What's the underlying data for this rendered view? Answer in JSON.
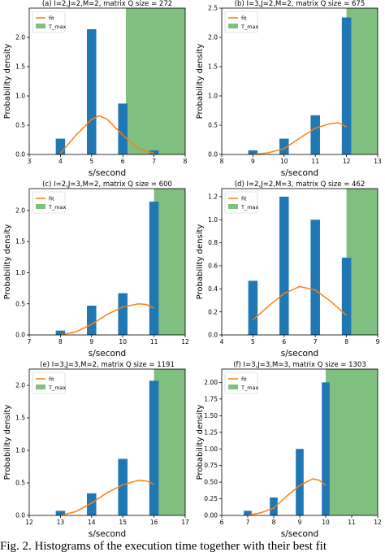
{
  "colors": {
    "bar": "#1f77b4",
    "fit": "#ff7f0e",
    "tmax": "#7fbf7f"
  },
  "chart_data": [
    {
      "type": "bar",
      "panel": "a",
      "title": "(a) I=2,J=2,M=2, matrix Q size = 272",
      "xlabel": "s/second",
      "ylabel": "Probability density",
      "xlim": [
        3,
        8
      ],
      "ylim": [
        0,
        2.5
      ],
      "xticks": [
        3,
        4,
        5,
        6,
        7,
        8
      ],
      "yticks": [
        0.0,
        0.5,
        1.0,
        1.5,
        2.0
      ],
      "bars": [
        {
          "x": 4,
          "value": 0.27
        },
        {
          "x": 5,
          "value": 2.14
        },
        {
          "x": 6,
          "value": 0.87
        },
        {
          "x": 7,
          "value": 0.07
        }
      ],
      "fit": {
        "x": [
          4,
          4.5,
          5,
          5.25,
          5.5,
          6,
          6.5,
          7
        ],
        "y": [
          0.02,
          0.33,
          0.6,
          0.66,
          0.6,
          0.33,
          0.1,
          0.02
        ]
      },
      "t_max": [
        6.1,
        8
      ],
      "legend": [
        "fit",
        "T_max"
      ],
      "legend_loc": "upper left"
    },
    {
      "type": "bar",
      "panel": "b",
      "title": "(b) I=3,J=2,M=2, matrix Q size = 675",
      "xlabel": "s/second",
      "ylabel": "Probability density",
      "xlim": [
        8,
        13
      ],
      "ylim": [
        0,
        2.5
      ],
      "xticks": [
        8,
        9,
        10,
        11,
        12,
        13
      ],
      "yticks": [
        0.0,
        0.5,
        1.0,
        1.5,
        2.0,
        2.5
      ],
      "bars": [
        {
          "x": 9,
          "value": 0.07
        },
        {
          "x": 10,
          "value": 0.27
        },
        {
          "x": 11,
          "value": 0.67
        },
        {
          "x": 12,
          "value": 2.34
        }
      ],
      "fit": {
        "x": [
          9,
          9.5,
          10,
          10.5,
          11,
          11.5,
          11.75,
          12
        ],
        "y": [
          0.0,
          0.03,
          0.1,
          0.28,
          0.45,
          0.53,
          0.54,
          0.47
        ]
      },
      "t_max": [
        12,
        13
      ],
      "legend": [
        "fit",
        "T_max"
      ],
      "legend_loc": "upper left"
    },
    {
      "type": "bar",
      "panel": "c",
      "title": "(c) I=2,J=3,M=2, matrix Q size = 600",
      "xlabel": "s/second",
      "ylabel": "Probability density",
      "xlim": [
        7,
        12
      ],
      "ylim": [
        0,
        2.35
      ],
      "xticks": [
        7,
        8,
        9,
        10,
        11,
        12
      ],
      "yticks": [
        0.0,
        0.5,
        1.0,
        1.5,
        2.0
      ],
      "bars": [
        {
          "x": 8,
          "value": 0.07
        },
        {
          "x": 9,
          "value": 0.47
        },
        {
          "x": 10,
          "value": 0.67
        },
        {
          "x": 11,
          "value": 2.14
        }
      ],
      "fit": {
        "x": [
          8,
          8.5,
          9,
          9.5,
          10,
          10.5,
          10.75,
          11
        ],
        "y": [
          0.0,
          0.05,
          0.17,
          0.33,
          0.45,
          0.5,
          0.49,
          0.43
        ]
      },
      "t_max": [
        11,
        12
      ],
      "legend": [
        "fit",
        "T_max"
      ],
      "legend_loc": "upper left"
    },
    {
      "type": "bar",
      "panel": "d",
      "title": "(d) I=2,J=2,M=3, matrix Q size = 462",
      "xlabel": "s/second",
      "ylabel": "Probability density",
      "xlim": [
        4,
        9
      ],
      "ylim": [
        0,
        1.27
      ],
      "xticks": [
        4,
        5,
        6,
        7,
        8,
        9
      ],
      "yticks": [
        0.0,
        0.2,
        0.4,
        0.6,
        0.8,
        1.0,
        1.2
      ],
      "bars": [
        {
          "x": 5,
          "value": 0.47
        },
        {
          "x": 6,
          "value": 1.2
        },
        {
          "x": 7,
          "value": 1.0
        },
        {
          "x": 8,
          "value": 0.67
        }
      ],
      "fit": {
        "x": [
          5,
          5.5,
          6,
          6.5,
          7,
          7.5,
          8
        ],
        "y": [
          0.13,
          0.25,
          0.36,
          0.42,
          0.39,
          0.29,
          0.17
        ]
      },
      "t_max": [
        8,
        9
      ],
      "legend": [
        "fit",
        "T_max"
      ],
      "legend_loc": "upper left"
    },
    {
      "type": "bar",
      "panel": "e",
      "title": "(e) I=3,J=3,M=2, matrix Q size = 1191",
      "xlabel": "s/second",
      "ylabel": "Probability density",
      "xlim": [
        12,
        17
      ],
      "ylim": [
        0,
        2.25
      ],
      "xticks": [
        12,
        13,
        14,
        15,
        16,
        17
      ],
      "yticks": [
        0.0,
        0.5,
        1.0,
        1.5,
        2.0
      ],
      "bars": [
        {
          "x": 13,
          "value": 0.07
        },
        {
          "x": 14,
          "value": 0.34
        },
        {
          "x": 15,
          "value": 0.87
        },
        {
          "x": 16,
          "value": 2.07
        }
      ],
      "fit": {
        "x": [
          13,
          13.5,
          14,
          14.5,
          15,
          15.5,
          15.75,
          16
        ],
        "y": [
          0.0,
          0.06,
          0.19,
          0.35,
          0.47,
          0.54,
          0.53,
          0.48
        ]
      },
      "t_max": [
        16,
        17
      ],
      "legend": [
        "fit",
        "T_max"
      ],
      "legend_loc": "upper left"
    },
    {
      "type": "bar",
      "panel": "f",
      "title": "(f) I=3,J=3,M=3, matrix Q size = 1303",
      "xlabel": "s/second",
      "ylabel": "Probability density",
      "xlim": [
        6,
        12
      ],
      "ylim": [
        0,
        2.2
      ],
      "xticks": [
        6,
        7,
        8,
        9,
        10,
        11,
        12
      ],
      "yticks": [
        0.0,
        0.25,
        0.5,
        0.75,
        1.0,
        1.25,
        1.5,
        1.75,
        2.0
      ],
      "bars": [
        {
          "x": 7,
          "value": 0.07
        },
        {
          "x": 8,
          "value": 0.27
        },
        {
          "x": 9,
          "value": 1.0
        },
        {
          "x": 10,
          "value": 2.0
        }
      ],
      "fit": {
        "x": [
          7,
          7.5,
          8,
          8.5,
          9,
          9.5,
          9.75,
          10
        ],
        "y": [
          0.0,
          0.04,
          0.11,
          0.29,
          0.45,
          0.55,
          0.53,
          0.45
        ]
      },
      "t_max": [
        10,
        12
      ],
      "legend": [
        "fit",
        "T_max"
      ],
      "legend_loc": "upper left"
    }
  ],
  "caption": "Fig. 2. Histograms of the execution time together with their best fit"
}
